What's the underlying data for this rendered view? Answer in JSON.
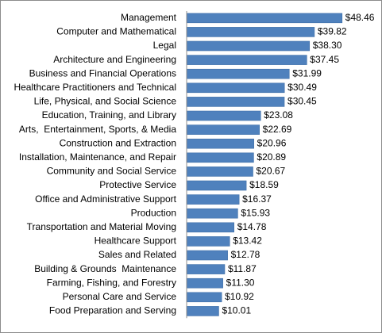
{
  "chart_data": {
    "type": "bar",
    "orientation": "horizontal",
    "title": "",
    "xlabel": "",
    "ylabel": "",
    "grid": false,
    "legend": "none",
    "bar_color": "#4f81bd",
    "xlim": [
      0,
      50
    ],
    "categories": [
      "Management",
      "Computer and Mathematical",
      "Legal",
      "Architecture and Engineering",
      "Business and Financial Operations",
      "Healthcare Practitioners and Technical",
      "Life, Physical, and Social Science",
      "Education, Training, and Library",
      "Arts,  Entertainment, Sports, & Media",
      "Construction and Extraction",
      "Installation, Maintenance, and Repair",
      "Community and Social Service",
      "Protective Service",
      "Office and Administrative Support",
      "Production",
      "Transportation and Material Moving",
      "Healthcare Support",
      "Sales and Related",
      "Building & Grounds  Maintenance",
      "Farming, Fishing, and Forestry",
      "Personal Care and Service",
      "Food Preparation and Serving"
    ],
    "values": [
      48.46,
      39.82,
      38.3,
      37.45,
      31.99,
      30.49,
      30.45,
      23.08,
      22.69,
      20.96,
      20.89,
      20.67,
      18.59,
      16.37,
      15.93,
      14.78,
      13.42,
      12.78,
      11.87,
      11.3,
      10.92,
      10.01
    ],
    "value_labels": [
      "$48.46",
      "$39.82",
      "$38.30",
      "$37.45",
      "$31.99",
      "$30.49",
      "$30.45",
      "$23.08",
      "$22.69",
      "$20.96",
      "$20.89",
      "$20.67",
      "$18.59",
      "$16.37",
      "$15.93",
      "$14.78",
      "$13.42",
      "$12.78",
      "$11.87",
      "$11.30",
      "$10.92",
      "$10.01"
    ]
  }
}
